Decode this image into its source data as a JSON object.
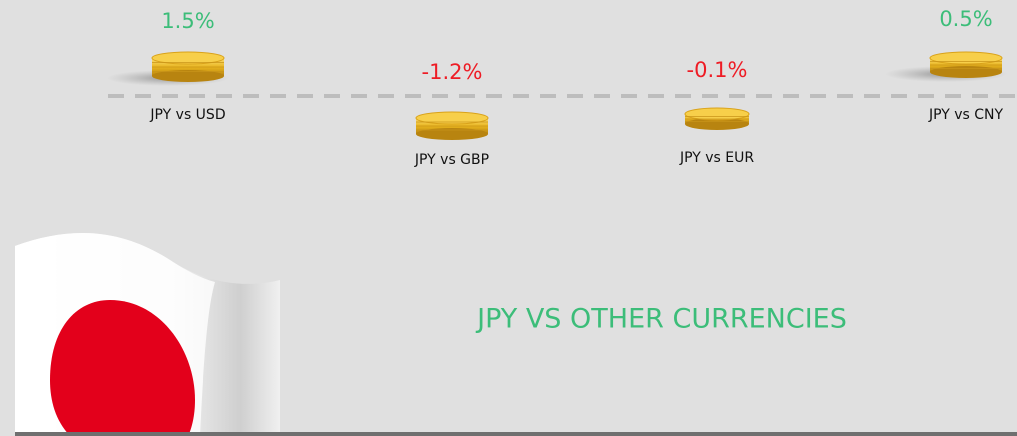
{
  "items": [
    {
      "change": "1.5%",
      "label": "JPY vs USD"
    },
    {
      "change": "-1.2%",
      "label": "JPY vs GBP"
    },
    {
      "change": "-0.1%",
      "label": "JPY vs EUR"
    },
    {
      "change": "0.5%",
      "label": "JPY vs CNY"
    }
  ],
  "title": "JPY VS OTHER CURRENCIES"
}
